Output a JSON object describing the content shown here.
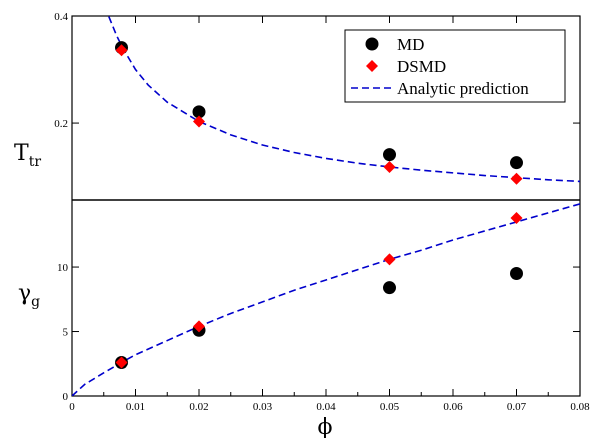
{
  "chart_data": {
    "type": "scatter",
    "xlabel": "ϕ",
    "xlim": [
      0,
      0.08
    ],
    "x_ticks": [
      "0",
      "0.01",
      "0.02",
      "0.03",
      "0.04",
      "0.05",
      "0.06",
      "0.07",
      "0.08"
    ],
    "x_tick_values": [
      0,
      0.01,
      0.02,
      0.03,
      0.04,
      0.05,
      0.06,
      0.07,
      0.08
    ],
    "legend": {
      "placement": "top-right of upper panel",
      "entries": [
        {
          "label": "MD",
          "marker": "circle",
          "color": "#000000"
        },
        {
          "label": "DSMD",
          "marker": "diamond",
          "color": "#ff0000"
        },
        {
          "label": "Analytic prediction",
          "marker": "dashed-line",
          "color": "#0000cc"
        }
      ]
    },
    "panels": [
      {
        "id": "top",
        "ylabel": "T",
        "ylabel_sub": "tr",
        "ylim": [
          0.0563,
          0.4
        ],
        "y_ticks": [
          "0.2",
          "0.4"
        ],
        "y_tick_values": [
          0.2,
          0.4
        ],
        "series": [
          {
            "name": "MD",
            "marker": "circle",
            "color": "#000000",
            "x": [
              0.0078,
              0.02,
              0.05,
              0.07
            ],
            "y": [
              0.341,
              0.221,
              0.141,
              0.126
            ]
          },
          {
            "name": "DSMD",
            "marker": "diamond",
            "color": "#ff0000",
            "x": [
              0.0078,
              0.02,
              0.05,
              0.07
            ],
            "y": [
              0.336,
              0.203,
              0.118,
              0.096
            ]
          },
          {
            "name": "Analytic prediction",
            "marker": "dashed-line",
            "color": "#0000cc",
            "x": [
              0.0058,
              0.007,
              0.008,
              0.01,
              0.012,
              0.015,
              0.02,
              0.025,
              0.03,
              0.035,
              0.04,
              0.045,
              0.05,
              0.055,
              0.06,
              0.065,
              0.07,
              0.075,
              0.08
            ],
            "y": [
              0.399,
              0.364,
              0.34,
              0.3,
              0.271,
              0.239,
              0.203,
              0.178,
              0.159,
              0.145,
              0.134,
              0.125,
              0.118,
              0.112,
              0.107,
              0.102,
              0.098,
              0.094,
              0.091
            ]
          }
        ]
      },
      {
        "id": "bottom",
        "ylabel": "γ",
        "ylabel_sub": "g",
        "ylim": [
          0,
          15.2
        ],
        "y_ticks": [
          "0",
          "5",
          "10"
        ],
        "y_tick_values": [
          0,
          5,
          10
        ],
        "series": [
          {
            "name": "MD",
            "marker": "circle",
            "color": "#000000",
            "x": [
              0.0078,
              0.02,
              0.05,
              0.07
            ],
            "y": [
              2.6,
              5.1,
              8.4,
              9.5
            ]
          },
          {
            "name": "DSMD",
            "marker": "diamond",
            "color": "#ff0000",
            "x": [
              0.0078,
              0.02,
              0.05,
              0.07
            ],
            "y": [
              2.6,
              5.4,
              10.6,
              13.8
            ]
          },
          {
            "name": "Analytic prediction",
            "marker": "dashed-line",
            "color": "#0000cc",
            "x": [
              0,
              0.002,
              0.005,
              0.0078,
              0.01,
              0.015,
              0.02,
              0.025,
              0.03,
              0.035,
              0.04,
              0.045,
              0.05,
              0.055,
              0.06,
              0.065,
              0.07,
              0.075,
              0.08
            ],
            "y": [
              0,
              0.9,
              1.8,
              2.6,
              3.2,
              4.3,
              5.4,
              6.4,
              7.3,
              8.2,
              9.0,
              9.8,
              10.6,
              11.3,
              12.1,
              12.8,
              13.5,
              14.2,
              14.9
            ]
          }
        ]
      }
    ]
  }
}
